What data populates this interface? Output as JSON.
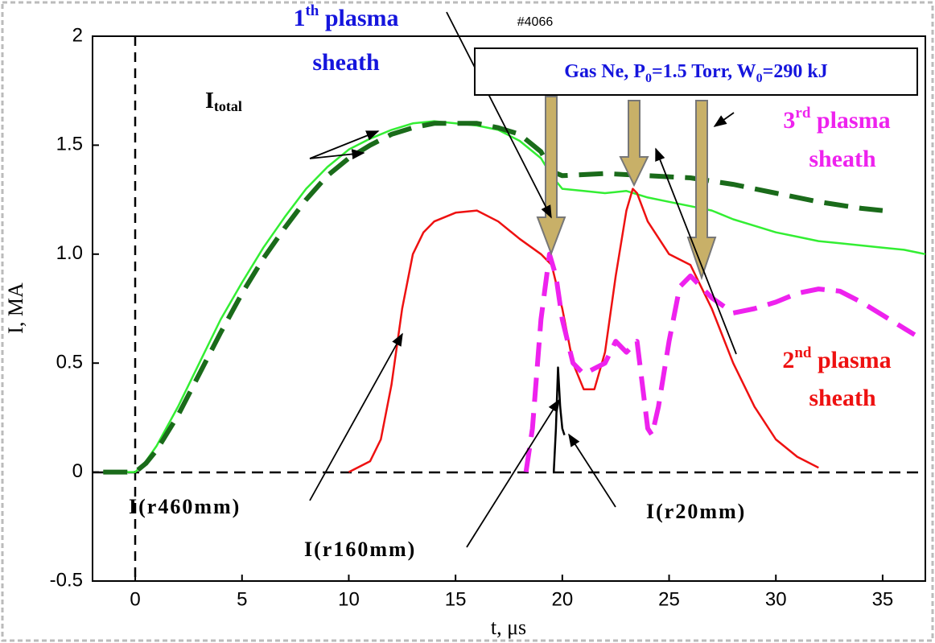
{
  "chart_data": {
    "type": "line",
    "title": "#4066",
    "xlabel": "t, μs",
    "ylabel": "I, MA",
    "xlim": [
      -2,
      37
    ],
    "ylim": [
      -0.5,
      2
    ],
    "xticks": [
      0,
      5,
      10,
      15,
      20,
      25,
      30,
      35
    ],
    "yticks": [
      -0.5,
      0,
      0.5,
      {
        "value": 1,
        "label": "1.0"
      },
      1.5,
      2
    ],
    "box": [
      "Gas Ne, P",
      "0",
      "=1.5 Torr, W",
      "0",
      "=290 kJ"
    ],
    "annotations": {
      "sheath1": [
        "1",
        "th",
        " plasma",
        "sheath"
      ],
      "sheath2": [
        "2",
        "nd",
        " plasma",
        "sheath"
      ],
      "sheath3": [
        "3",
        "rd",
        " plasma",
        "sheath"
      ],
      "itotal": [
        "I",
        "total"
      ],
      "r460": "I(r460mm)",
      "r160": "I(r160mm)",
      "r20": "I(r20mm)"
    },
    "series": [
      {
        "color": "#33ee33",
        "dash": false,
        "x": [
          -1.5,
          -0.5,
          0,
          0.5,
          1,
          2,
          3,
          4,
          5,
          6,
          7,
          8,
          9,
          10,
          11,
          12,
          13,
          14,
          15,
          16,
          17,
          18,
          19,
          19.5,
          20,
          21,
          22,
          23,
          24,
          25,
          26,
          27,
          28,
          29,
          30,
          31,
          32,
          33,
          34,
          35,
          36,
          37
        ],
        "values": [
          0,
          0,
          0,
          0.05,
          0.12,
          0.3,
          0.5,
          0.7,
          0.87,
          1.03,
          1.17,
          1.3,
          1.4,
          1.48,
          1.53,
          1.57,
          1.6,
          1.61,
          1.6,
          1.59,
          1.57,
          1.52,
          1.44,
          1.36,
          1.3,
          1.29,
          1.28,
          1.29,
          1.26,
          1.24,
          1.22,
          1.2,
          1.16,
          1.13,
          1.1,
          1.08,
          1.06,
          1.05,
          1.04,
          1.03,
          1.02,
          1.0
        ]
      },
      {
        "color": "#1a6b1a",
        "dash": true,
        "x": [
          -1.5,
          0,
          0.5,
          1,
          2,
          3,
          4,
          5,
          6,
          7,
          8,
          9,
          10,
          11,
          12,
          13,
          14,
          15,
          16,
          17,
          18,
          19,
          19.5,
          20,
          22,
          24,
          26,
          28,
          30,
          32,
          34,
          35
        ],
        "values": [
          0,
          0,
          0.04,
          0.1,
          0.26,
          0.45,
          0.64,
          0.82,
          0.98,
          1.12,
          1.25,
          1.36,
          1.44,
          1.5,
          1.55,
          1.58,
          1.6,
          1.6,
          1.6,
          1.58,
          1.55,
          1.47,
          1.38,
          1.36,
          1.37,
          1.36,
          1.35,
          1.32,
          1.28,
          1.24,
          1.21,
          1.2
        ]
      },
      {
        "color": "#ee1111",
        "dash": false,
        "x": [
          10,
          11,
          11.5,
          12,
          12.5,
          13,
          13.5,
          14,
          15,
          16,
          17,
          18,
          19,
          19.5,
          20,
          20.5,
          21,
          21.5,
          22,
          22.5,
          23,
          23.3,
          23.5,
          24,
          25,
          26,
          27,
          28,
          29,
          30,
          31,
          32
        ],
        "values": [
          0,
          0.05,
          0.15,
          0.4,
          0.75,
          1.0,
          1.1,
          1.15,
          1.19,
          1.2,
          1.15,
          1.07,
          1.0,
          0.95,
          0.75,
          0.5,
          0.38,
          0.38,
          0.55,
          0.9,
          1.2,
          1.3,
          1.28,
          1.15,
          1.0,
          0.95,
          0.75,
          0.5,
          0.3,
          0.15,
          0.07,
          0.02
        ]
      },
      {
        "color": "#ee22ee",
        "dash": true,
        "x": [
          18.3,
          18.6,
          19,
          19.4,
          19.7,
          20,
          20.5,
          21,
          22,
          22.5,
          23,
          23.5,
          24,
          24.2,
          24.5,
          25,
          25.5,
          26,
          27,
          28,
          29,
          30,
          31,
          32,
          33,
          34,
          35,
          36,
          36.5
        ],
        "values": [
          0,
          0.2,
          0.7,
          1.0,
          0.9,
          0.7,
          0.5,
          0.45,
          0.5,
          0.6,
          0.55,
          0.6,
          0.2,
          0.17,
          0.3,
          0.6,
          0.85,
          0.9,
          0.8,
          0.73,
          0.75,
          0.78,
          0.82,
          0.84,
          0.83,
          0.78,
          0.72,
          0.66,
          0.63
        ]
      },
      {
        "color": "#000000",
        "dash": false,
        "x": [
          19.6,
          19.7,
          19.8,
          19.9,
          20,
          20.1
        ],
        "values": [
          0,
          0.2,
          0.48,
          0.3,
          0.2,
          0.17
        ]
      }
    ]
  }
}
